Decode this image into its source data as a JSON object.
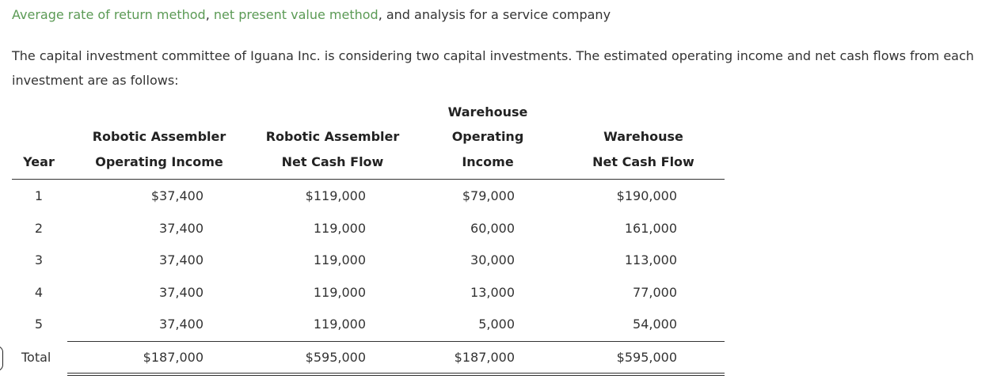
{
  "title": {
    "link1": "Average rate of return method",
    "sep1": ", ",
    "link2": "net present value method",
    "rest": ", and analysis for a service company"
  },
  "intro": "The capital investment committee of Iguana Inc. is considering two capital investments. The estimated operating income and net cash flows from each investment are as follows:",
  "table": {
    "headers": {
      "year": [
        "Year"
      ],
      "robotic_income": [
        "Robotic Assembler",
        "Operating Income"
      ],
      "robotic_cash": [
        "Robotic Assembler",
        "Net Cash Flow"
      ],
      "warehouse_income": [
        "Warehouse",
        "Operating",
        "Income"
      ],
      "warehouse_cash": [
        "Warehouse",
        "Net Cash Flow"
      ]
    },
    "rows": [
      {
        "year": "1",
        "robotic_income": "$37,400",
        "robotic_cash": "$119,000",
        "warehouse_income": "$79,000",
        "warehouse_cash": "$190,000"
      },
      {
        "year": "2",
        "robotic_income": "37,400",
        "robotic_cash": "119,000",
        "warehouse_income": "60,000",
        "warehouse_cash": "161,000"
      },
      {
        "year": "3",
        "robotic_income": "37,400",
        "robotic_cash": "119,000",
        "warehouse_income": "30,000",
        "warehouse_cash": "113,000"
      },
      {
        "year": "4",
        "robotic_income": "37,400",
        "robotic_cash": "119,000",
        "warehouse_income": "13,000",
        "warehouse_cash": "77,000"
      },
      {
        "year": "5",
        "robotic_income": "37,400",
        "robotic_cash": "119,000",
        "warehouse_income": "5,000",
        "warehouse_cash": "54,000"
      }
    ],
    "total": {
      "year": "Total",
      "robotic_income": "$187,000",
      "robotic_cash": "$595,000",
      "warehouse_income": "$187,000",
      "warehouse_cash": "$595,000"
    }
  },
  "colors": {
    "link": "#5b9a55",
    "text": "#333333"
  }
}
